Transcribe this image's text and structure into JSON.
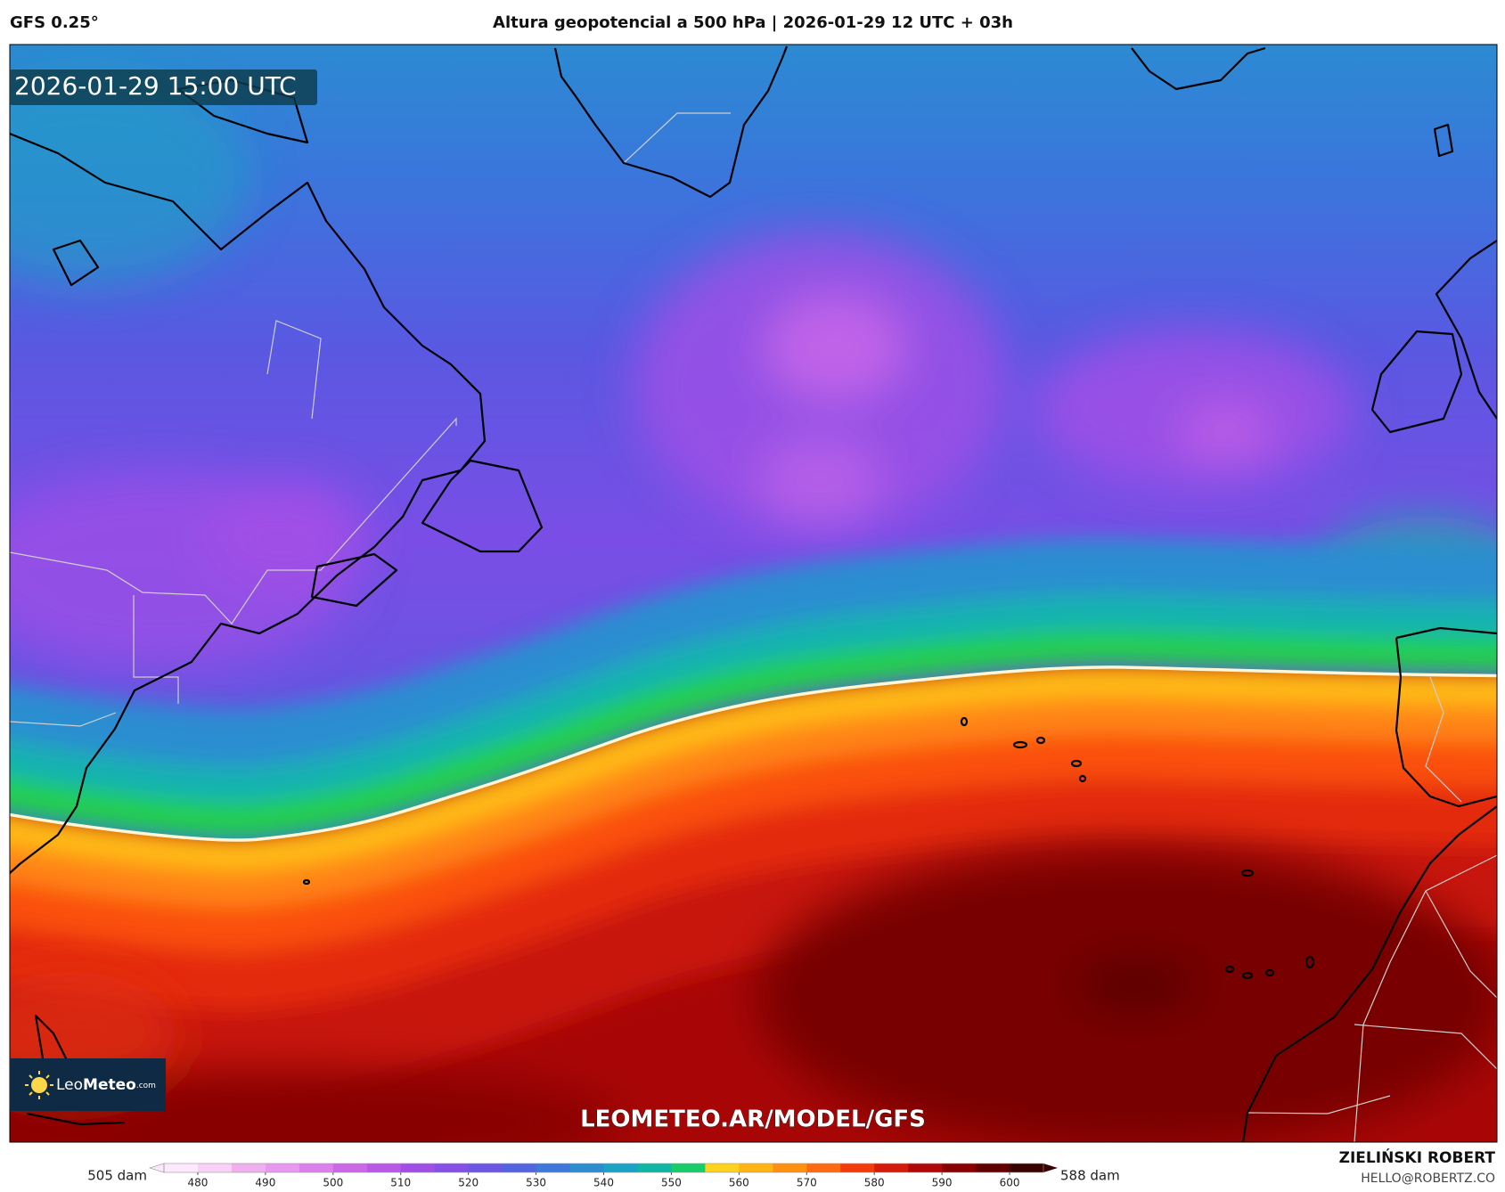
{
  "header": {
    "model": "GFS 0.25°",
    "title": "Altura geopotencial a 500 hPa | 2026-01-29 12 UTC + 03h"
  },
  "map": {
    "valid_time": "2026-01-29 15:00 UTC",
    "watermark": "LEOMETEO.AR/MODEL/GFS",
    "logo": {
      "prefix": "Leo",
      "brand": "Meteo",
      "suffix": ".com"
    }
  },
  "colorbar": {
    "range": [
      475,
      605
    ],
    "ticks": [
      480,
      490,
      500,
      510,
      520,
      530,
      540,
      550,
      560,
      570,
      580,
      590,
      600
    ],
    "min_label": "505 dam",
    "max_label": "588 dam",
    "levels": [
      {
        "value": 475,
        "color": "#fde8fd"
      },
      {
        "value": 480,
        "color": "#f8d0f8"
      },
      {
        "value": 485,
        "color": "#f0b0f0"
      },
      {
        "value": 490,
        "color": "#e898ee"
      },
      {
        "value": 495,
        "color": "#dc80ec"
      },
      {
        "value": 500,
        "color": "#cc68e8"
      },
      {
        "value": 505,
        "color": "#b858e6"
      },
      {
        "value": 510,
        "color": "#a04ee6"
      },
      {
        "value": 515,
        "color": "#8650e6"
      },
      {
        "value": 520,
        "color": "#6c56e4"
      },
      {
        "value": 525,
        "color": "#5464de"
      },
      {
        "value": 530,
        "color": "#3e78d8"
      },
      {
        "value": 535,
        "color": "#2c8cd0"
      },
      {
        "value": 540,
        "color": "#1aa2c4"
      },
      {
        "value": 545,
        "color": "#10b6a4"
      },
      {
        "value": 550,
        "color": "#18cc6a"
      },
      {
        "value": 555,
        "color": "#ffd21e"
      },
      {
        "value": 560,
        "color": "#ffb414"
      },
      {
        "value": 565,
        "color": "#ff9010"
      },
      {
        "value": 570,
        "color": "#ff6a10"
      },
      {
        "value": 575,
        "color": "#f23a0a"
      },
      {
        "value": 580,
        "color": "#d41a0a"
      },
      {
        "value": 585,
        "color": "#b00808"
      },
      {
        "value": 590,
        "color": "#880000"
      },
      {
        "value": 595,
        "color": "#600000"
      },
      {
        "value": 600,
        "color": "#3a0000"
      }
    ]
  },
  "footer": {
    "author": "ZIELIŃSKI ROBERT",
    "email": "HELLO@ROBERTZ.CO"
  }
}
